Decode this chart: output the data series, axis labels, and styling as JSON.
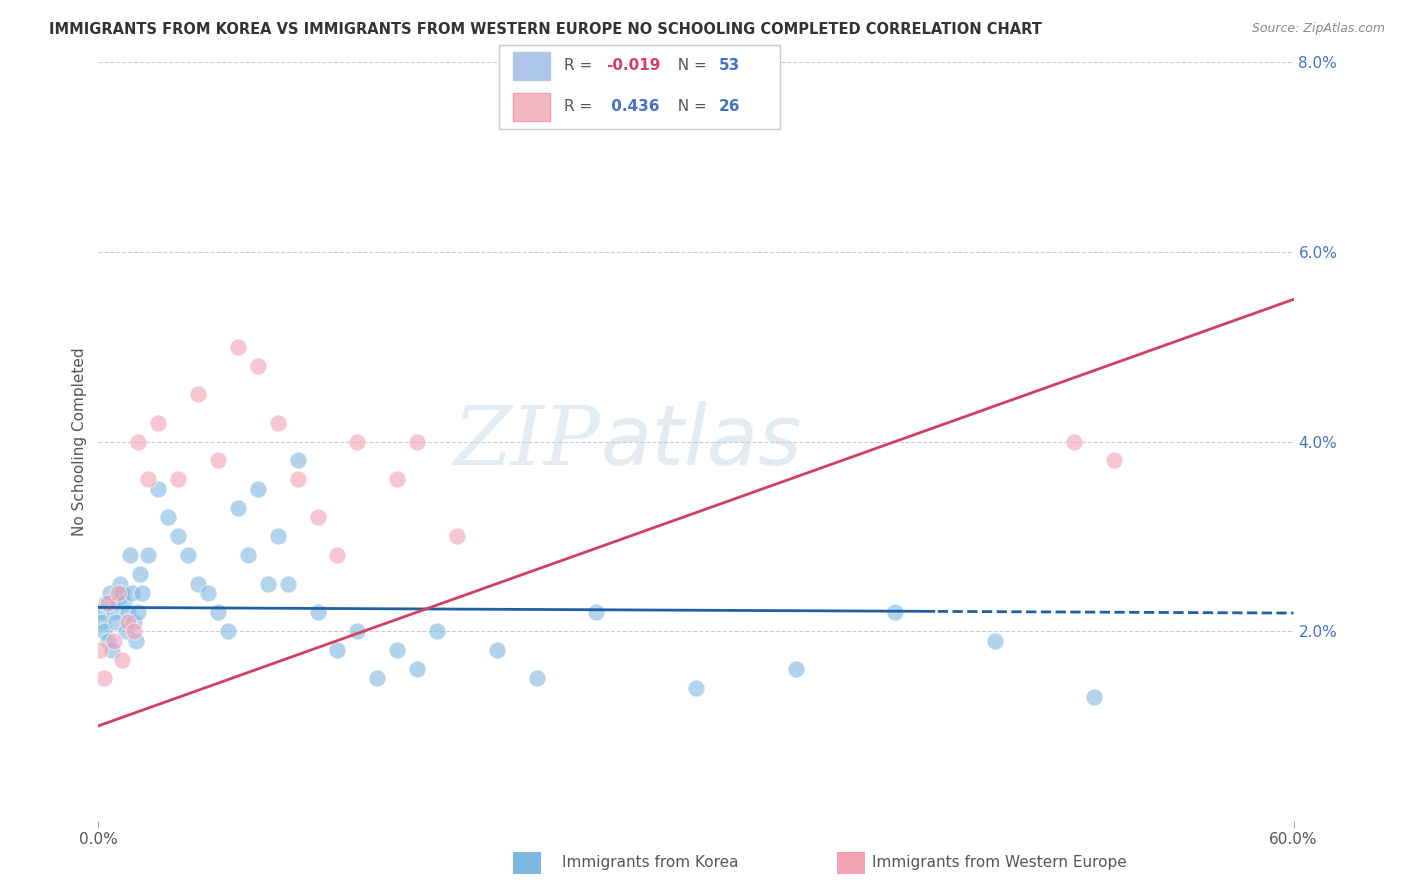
{
  "title": "IMMIGRANTS FROM KOREA VS IMMIGRANTS FROM WESTERN EUROPE NO SCHOOLING COMPLETED CORRELATION CHART",
  "source": "Source: ZipAtlas.com",
  "ylabel": "No Schooling Completed",
  "xlabel_korea": "Immigrants from Korea",
  "xlabel_we": "Immigrants from Western Europe",
  "watermark_zip": "ZIP",
  "watermark_atlas": "atlas",
  "legend": [
    {
      "color": "#aec6e8",
      "R": "-0.019",
      "N": "53"
    },
    {
      "color": "#f4b8c1",
      "R": "0.436",
      "N": "26"
    }
  ],
  "korea_color": "#7db8e0",
  "we_color": "#f4a0b5",
  "korea_line_color": "#2060a0",
  "we_line_color": "#d04060",
  "xlim": [
    0,
    0.6
  ],
  "ylim": [
    0,
    0.08
  ],
  "x_tick_left": "0.0%",
  "x_tick_right": "60.0%",
  "y_tick_labels": [
    "2.0%",
    "4.0%",
    "6.0%",
    "8.0%"
  ],
  "y_ticks": [
    0.02,
    0.04,
    0.06,
    0.08
  ],
  "korea_scatter_x": [
    0.001,
    0.002,
    0.003,
    0.004,
    0.005,
    0.006,
    0.007,
    0.008,
    0.009,
    0.01,
    0.011,
    0.012,
    0.013,
    0.014,
    0.015,
    0.016,
    0.017,
    0.018,
    0.019,
    0.02,
    0.021,
    0.022,
    0.025,
    0.03,
    0.035,
    0.04,
    0.045,
    0.05,
    0.055,
    0.06,
    0.065,
    0.07,
    0.075,
    0.08,
    0.085,
    0.09,
    0.095,
    0.1,
    0.11,
    0.12,
    0.13,
    0.14,
    0.15,
    0.16,
    0.17,
    0.2,
    0.22,
    0.25,
    0.3,
    0.35,
    0.4,
    0.45,
    0.5
  ],
  "korea_scatter_y": [
    0.022,
    0.021,
    0.02,
    0.023,
    0.019,
    0.024,
    0.018,
    0.022,
    0.021,
    0.023,
    0.025,
    0.024,
    0.023,
    0.02,
    0.022,
    0.028,
    0.024,
    0.021,
    0.019,
    0.022,
    0.026,
    0.024,
    0.028,
    0.035,
    0.032,
    0.03,
    0.028,
    0.025,
    0.024,
    0.022,
    0.02,
    0.033,
    0.028,
    0.035,
    0.025,
    0.03,
    0.025,
    0.038,
    0.022,
    0.018,
    0.02,
    0.015,
    0.018,
    0.016,
    0.02,
    0.018,
    0.015,
    0.022,
    0.014,
    0.016,
    0.022,
    0.019,
    0.013
  ],
  "we_scatter_x": [
    0.001,
    0.003,
    0.005,
    0.008,
    0.01,
    0.012,
    0.015,
    0.018,
    0.02,
    0.025,
    0.03,
    0.04,
    0.05,
    0.06,
    0.07,
    0.08,
    0.09,
    0.1,
    0.11,
    0.12,
    0.13,
    0.15,
    0.16,
    0.18,
    0.49,
    0.51
  ],
  "we_scatter_y": [
    0.018,
    0.015,
    0.023,
    0.019,
    0.024,
    0.017,
    0.021,
    0.02,
    0.04,
    0.036,
    0.042,
    0.036,
    0.045,
    0.038,
    0.05,
    0.048,
    0.042,
    0.036,
    0.032,
    0.028,
    0.04,
    0.036,
    0.04,
    0.03,
    0.04,
    0.038
  ],
  "korea_line_intercept": 0.0225,
  "korea_line_slope": -0.001,
  "we_line_start_y": 0.01,
  "we_line_end_y": 0.055
}
